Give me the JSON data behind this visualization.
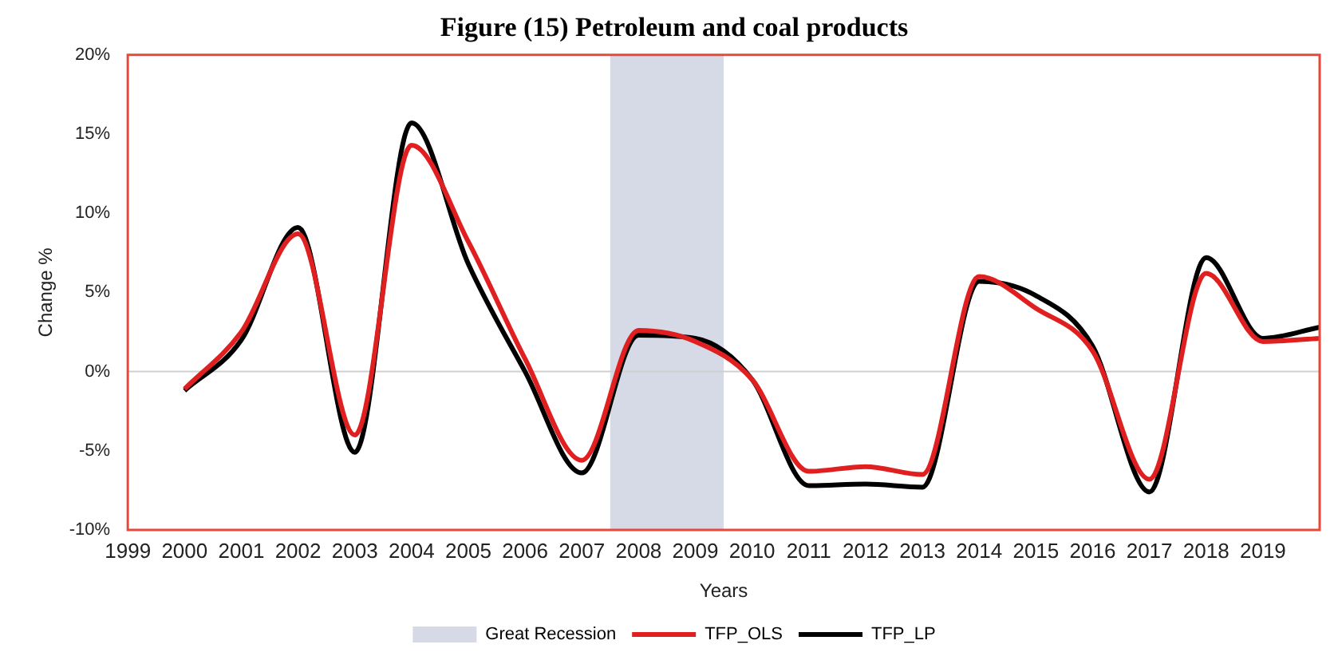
{
  "chart_data": {
    "type": "line",
    "title": "Figure (15) Petroleum and coal products",
    "xlabel": "Years",
    "ylabel": "Change %",
    "categories": [
      "1999",
      "2000",
      "2001",
      "2002",
      "2003",
      "2004",
      "2005",
      "2006",
      "2007",
      "2008",
      "2009",
      "2010",
      "2011",
      "2012",
      "2013",
      "2014",
      "2015",
      "2016",
      "2017",
      "2018",
      "2019",
      null
    ],
    "series": [
      {
        "name": "TFP_OLS",
        "color": "#e02020",
        "values": [
          null,
          -1.1,
          2.5,
          8.7,
          -4.0,
          14.3,
          8.2,
          0.8,
          -5.6,
          2.6,
          1.9,
          -0.5,
          -6.3,
          -6.0,
          -6.5,
          6.0,
          4.0,
          1.3,
          -6.8,
          6.2,
          1.9,
          2.1
        ]
      },
      {
        "name": "TFP_LP",
        "color": "#000000",
        "values": [
          null,
          -1.2,
          2.0,
          9.1,
          -5.1,
          15.7,
          6.8,
          0.0,
          -6.4,
          2.3,
          2.1,
          -0.5,
          -7.2,
          -7.1,
          -7.3,
          5.7,
          4.8,
          1.6,
          -7.6,
          7.2,
          2.1,
          2.8
        ]
      }
    ],
    "bands": [
      {
        "axis": "x",
        "from": "2008",
        "to": "2009",
        "label": "Great Recession",
        "color": "#d5dae6"
      }
    ],
    "ylim": [
      -10,
      20
    ],
    "yticks": [
      {
        "value": -10,
        "label": "-10%"
      },
      {
        "value": -5,
        "label": "-5%"
      },
      {
        "value": 0,
        "label": "0%"
      },
      {
        "value": 5,
        "label": "5%"
      },
      {
        "value": 10,
        "label": "10%"
      },
      {
        "value": 15,
        "label": "15%"
      },
      {
        "value": 20,
        "label": "20%"
      }
    ],
    "ref_lines": [
      {
        "axis": "y",
        "value": 0,
        "color": "#d0d0d0"
      }
    ],
    "legend": "bottom",
    "marker": "none",
    "line_style": "solid"
  }
}
